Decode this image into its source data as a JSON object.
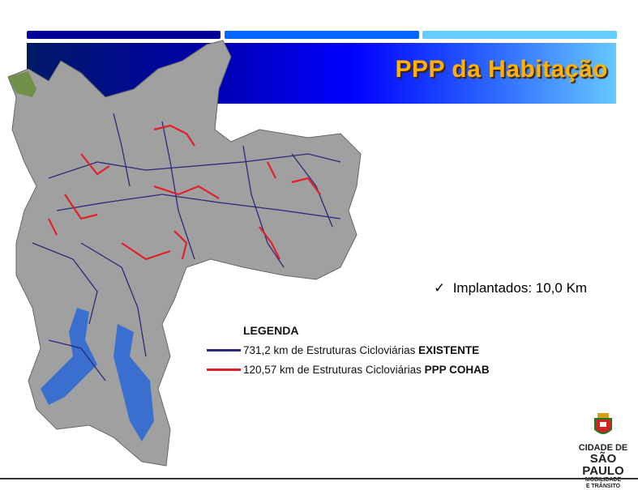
{
  "header": {
    "title": "PPP da Habitação",
    "bar_colors": [
      "#000099",
      "#0066ff",
      "#66ccff"
    ]
  },
  "status": {
    "check_icon": "check-icon",
    "check_symbol": "✓",
    "text": "Implantados: 10,0 Km"
  },
  "legend": {
    "title": "LEGENDA",
    "items": [
      {
        "color": "#2a2a7a",
        "text": "731,2 km de Estruturas Cicloviárias ",
        "bold": "EXISTENTE"
      },
      {
        "color": "#e0202a",
        "text": "120,57 km de Estruturas Cicloviárias ",
        "bold": "PPP COHAB"
      }
    ]
  },
  "logo": {
    "line1": "CIDADE DE",
    "line2": "SÃO PAULO",
    "line3": "MOBILIDADE",
    "line4": "E TRÂNSITO"
  },
  "map": {
    "land_color": "#a0a0a0",
    "water_color": "#3a6fd0",
    "existing_color": "#2a2a7a",
    "cohab_color": "#e0202a"
  }
}
